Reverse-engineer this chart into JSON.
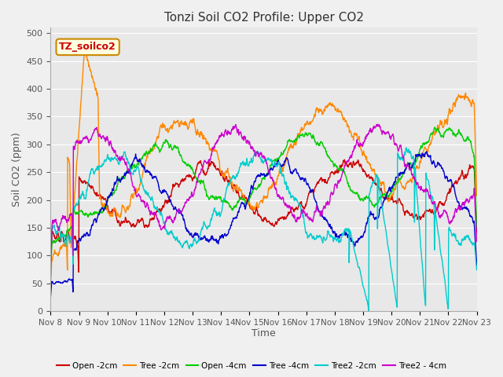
{
  "title": "Tonzi Soil CO2 Profile: Upper CO2",
  "ylabel": "Soil CO2 (ppm)",
  "xlabel": "Time",
  "dataset_label": "TZ_soilco2",
  "ylim": [
    0,
    510
  ],
  "xlim": [
    0,
    15
  ],
  "background_color": "#e8e8e8",
  "series": [
    {
      "label": "Open -2cm",
      "color": "#cc0000"
    },
    {
      "label": "Tree -2cm",
      "color": "#ff8800"
    },
    {
      "label": "Open -4cm",
      "color": "#00cc00"
    },
    {
      "label": "Tree -4cm",
      "color": "#0000cc"
    },
    {
      "label": "Tree2 -2cm",
      "color": "#00cccc"
    },
    {
      "label": "Tree2 - 4cm",
      "color": "#cc00cc"
    }
  ],
  "x_tick_labels": [
    "Nov 8",
    "Nov 9",
    "Nov 10",
    "Nov 11",
    "Nov 12",
    "Nov 13",
    "Nov 14",
    "Nov 15",
    "Nov 16",
    "Nov 17",
    "Nov 18",
    "Nov 19",
    "Nov 20",
    "Nov 21",
    "Nov 22",
    "Nov 23"
  ],
  "n_points": 1500
}
